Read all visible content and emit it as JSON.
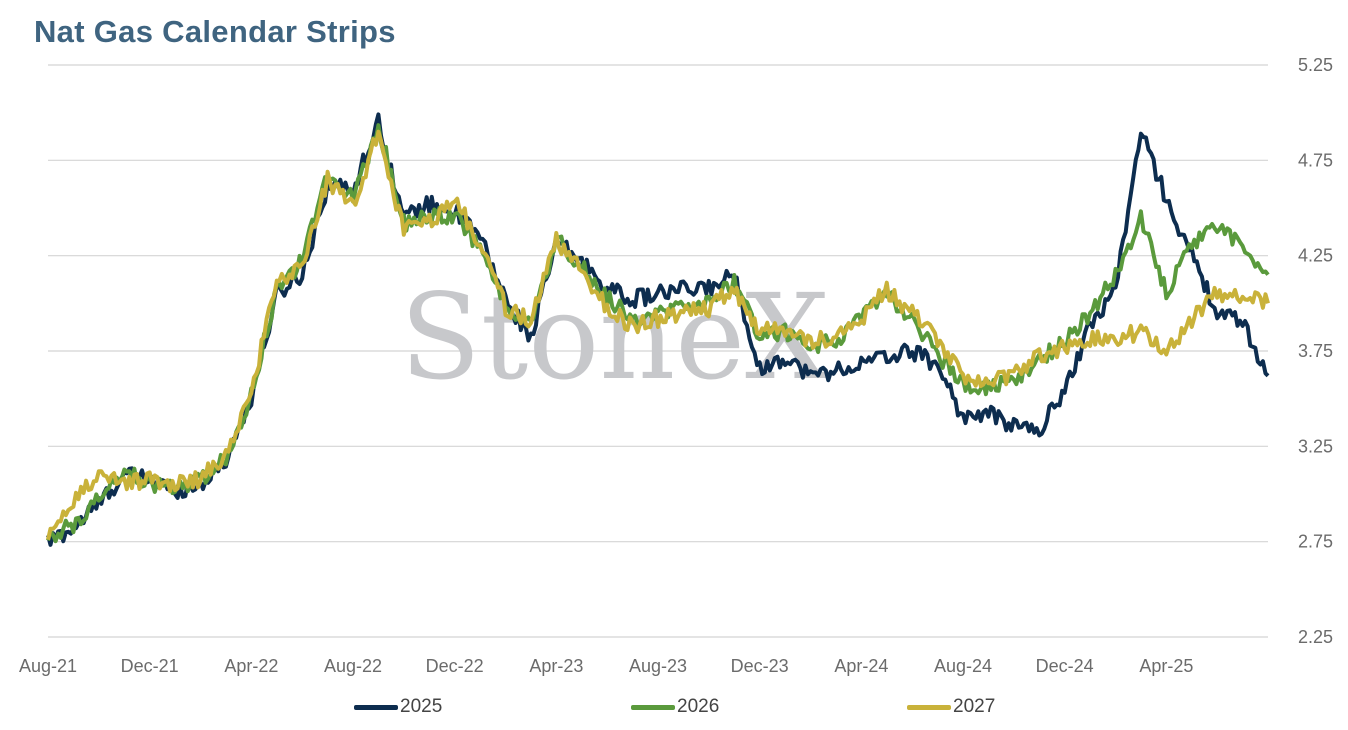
{
  "title": "Nat Gas Calendar Strips",
  "watermark": "StoneX",
  "chart_data": {
    "type": "line",
    "title": "Nat Gas Calendar Strips",
    "ylim": [
      2.25,
      5.25
    ],
    "y_ticks": [
      "5.25",
      "4.75",
      "4.25",
      "3.75",
      "3.25",
      "2.75",
      "2.25"
    ],
    "y_axis_side": "right",
    "grid": true,
    "legend": "bottom",
    "x_ticks": [
      "Aug-21",
      "Dec-21",
      "Apr-22",
      "Aug-22",
      "Dec-22",
      "Apr-23",
      "Aug-23",
      "Dec-23",
      "Apr-24",
      "Aug-24",
      "Dec-24",
      "Apr-25"
    ],
    "x": [
      "2021-08",
      "2021-09",
      "2021-10",
      "2021-11",
      "2021-12",
      "2022-01",
      "2022-02",
      "2022-03",
      "2022-04",
      "2022-05",
      "2022-06",
      "2022-07",
      "2022-08",
      "2022-09",
      "2022-10",
      "2022-11",
      "2022-12",
      "2023-01",
      "2023-02",
      "2023-03",
      "2023-04",
      "2023-05",
      "2023-06",
      "2023-07",
      "2023-08",
      "2023-09",
      "2023-10",
      "2023-11",
      "2023-12",
      "2024-01",
      "2024-02",
      "2024-03",
      "2024-04",
      "2024-05",
      "2024-06",
      "2024-07",
      "2024-08",
      "2024-09",
      "2024-10",
      "2024-11",
      "2024-12",
      "2025-01",
      "2025-02",
      "2025-03",
      "2025-04",
      "2025-05",
      "2025-06",
      "2025-07",
      "2025-08"
    ],
    "series": [
      {
        "name": "2025",
        "color": "#0d2d4f",
        "values": [
          2.75,
          2.82,
          2.95,
          3.1,
          3.08,
          3.02,
          3.05,
          3.18,
          3.5,
          4.05,
          4.15,
          4.62,
          4.6,
          4.95,
          4.45,
          4.52,
          4.48,
          4.35,
          4.02,
          3.82,
          4.32,
          4.22,
          4.08,
          4.02,
          4.05,
          4.07,
          4.08,
          4.15,
          3.65,
          3.72,
          3.62,
          3.65,
          3.68,
          3.72,
          3.75,
          3.68,
          3.4,
          3.42,
          3.36,
          3.33,
          3.55,
          3.88,
          4.08,
          4.9,
          4.55,
          4.25,
          3.95,
          3.9,
          3.62
        ]
      },
      {
        "name": "2026",
        "color": "#5a9a3c",
        "values": [
          2.76,
          2.84,
          2.98,
          3.12,
          3.05,
          3.04,
          3.07,
          3.2,
          3.52,
          4.08,
          4.22,
          4.7,
          4.55,
          4.93,
          4.42,
          4.47,
          4.45,
          4.3,
          4.0,
          3.88,
          4.34,
          4.2,
          4.03,
          3.92,
          3.95,
          3.98,
          4.0,
          4.12,
          3.82,
          3.85,
          3.78,
          3.8,
          3.92,
          4.05,
          3.92,
          3.74,
          3.56,
          3.55,
          3.6,
          3.7,
          3.8,
          3.95,
          4.15,
          4.45,
          4.05,
          4.3,
          4.4,
          4.3,
          4.15
        ]
      },
      {
        "name": "2027",
        "color": "#c9b23a",
        "values": [
          2.8,
          2.95,
          3.12,
          3.05,
          3.08,
          3.05,
          3.08,
          3.2,
          3.55,
          4.1,
          4.2,
          4.65,
          4.5,
          4.9,
          4.38,
          4.42,
          4.55,
          4.32,
          3.98,
          3.9,
          4.33,
          4.18,
          3.98,
          3.88,
          3.92,
          3.95,
          3.97,
          4.08,
          3.85,
          3.87,
          3.8,
          3.82,
          3.92,
          4.07,
          3.95,
          3.82,
          3.62,
          3.58,
          3.62,
          3.72,
          3.78,
          3.82,
          3.82,
          3.85,
          3.75,
          3.92,
          4.05,
          4.05,
          4.0
        ]
      }
    ]
  }
}
